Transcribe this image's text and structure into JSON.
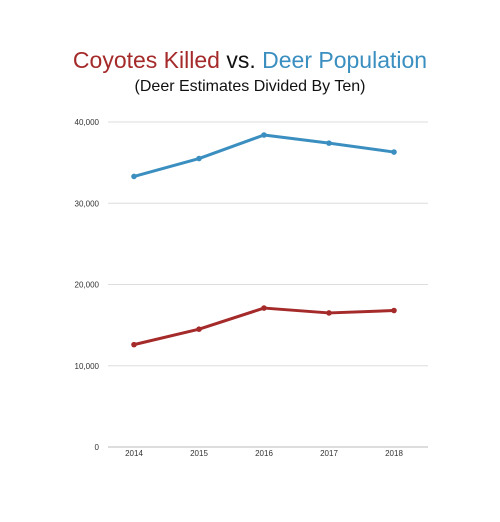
{
  "title": {
    "part1": "Coyotes Killed",
    "part2": " vs. ",
    "part3": "Deer Population"
  },
  "subtitle": "(Deer Estimates Divided By Ten)",
  "colors": {
    "coyotes": "#A52A2A",
    "deer": "#3A8FC0",
    "connector": "#111111",
    "grid": "#dddddd"
  },
  "chart_data": {
    "type": "line",
    "title": "Coyotes Killed vs. Deer Population",
    "subtitle": "(Deer Estimates Divided By Ten)",
    "x": [
      "2014",
      "2015",
      "2016",
      "2017",
      "2018"
    ],
    "series": [
      {
        "name": "Deer Population",
        "color": "#3A8FC0",
        "values": [
          33300,
          35500,
          38400,
          37400,
          36300
        ]
      },
      {
        "name": "Coyotes Killed",
        "color": "#A52A2A",
        "values": [
          12600,
          14500,
          17100,
          16500,
          16800
        ]
      }
    ],
    "yticks": [
      "0",
      "10,000",
      "20,000",
      "30,000",
      "40,000"
    ],
    "ylim": [
      0,
      40000
    ],
    "grid": true
  }
}
